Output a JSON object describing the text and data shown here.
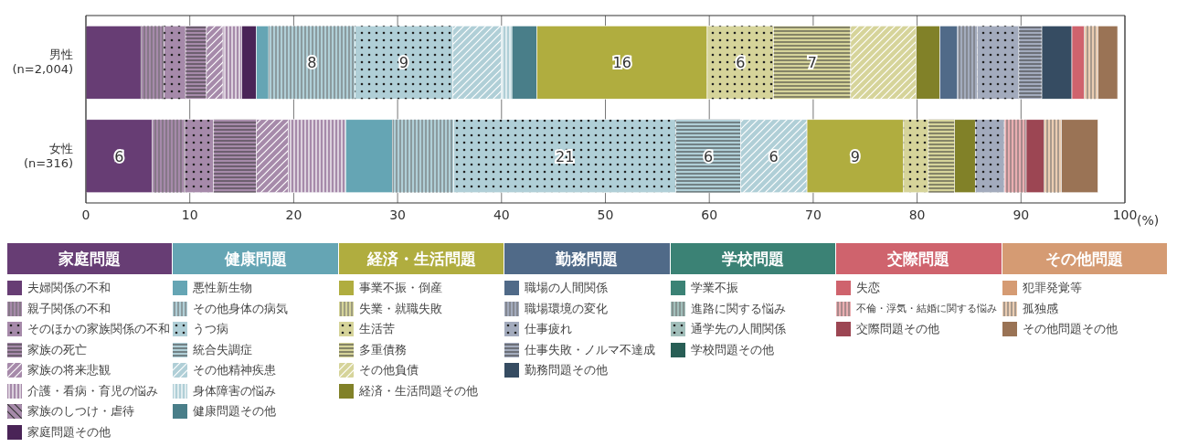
{
  "chart_data": {
    "type": "bar",
    "orientation": "horizontal",
    "stacked": true,
    "categories": [
      "男性\n(n=2,004)",
      "女性\n(n=316)"
    ],
    "xlim": [
      0,
      100
    ],
    "xticks": [
      0,
      10,
      20,
      30,
      40,
      50,
      60,
      70,
      80,
      90,
      100
    ],
    "xlabel": "(%)",
    "grid": "x",
    "legend": "bottom",
    "annotations": [
      "家庭問題",
      "健康問題",
      "経済・生活問題",
      "勤務問題",
      "学校問題",
      "交際問題",
      "その他問題"
    ],
    "series": [
      {
        "name": "夫婦関係の不和",
        "color": "#673d74",
        "values": [
          5.3,
          6.4
        ],
        "value_labels": [
          null,
          "6"
        ]
      },
      {
        "name": "親子関係の不和",
        "color": "#a68aaa",
        "values": [
          2.2,
          3.1
        ]
      },
      {
        "name": "そのほかの家族関係の不和",
        "color": "#a68aaa",
        "values": [
          2.1,
          2.8
        ]
      },
      {
        "name": "家族の死亡",
        "color": "#a68aaa",
        "values": [
          2.0,
          4.1
        ]
      },
      {
        "name": "家族の将来悲観",
        "color": "#a68aaa",
        "values": [
          1.6,
          3.1
        ]
      },
      {
        "name": "介護・看病・育児の悩み",
        "color": "#a68aaa",
        "values": [
          1.8,
          5.5
        ]
      },
      {
        "name": "家族のしつけ・虐待",
        "color": "#a68aaa",
        "values": [
          0,
          0
        ]
      },
      {
        "name": "家庭問題その他",
        "color": "#4a2457",
        "values": [
          1.4,
          0
        ]
      },
      {
        "name": "悪性新生物",
        "color": "#65a5b4",
        "values": [
          1.2,
          4.5
        ]
      },
      {
        "name": "その他身体の病気",
        "color": "#b0cfd7",
        "values": [
          8.3,
          5.9
        ],
        "value_labels": [
          "8",
          null
        ]
      },
      {
        "name": "うつ病",
        "color": "#b0cfd7",
        "values": [
          9.4,
          21.4
        ],
        "value_labels": [
          "9",
          "21"
        ]
      },
      {
        "name": "統合失調症",
        "color": "#b0cfd7",
        "values": [
          0,
          6.2
        ],
        "value_labels": [
          null,
          "6"
        ]
      },
      {
        "name": "その他精神疾患",
        "color": "#b0cfd7",
        "values": [
          4.7,
          6.4
        ],
        "value_labels": [
          null,
          "6"
        ]
      },
      {
        "name": "身体障害の悩み",
        "color": "#b0cfd7",
        "values": [
          1.0,
          0
        ]
      },
      {
        "name": "健康問題その他",
        "color": "#497e89",
        "values": [
          2.4,
          0
        ]
      },
      {
        "name": "事業不振・倒産",
        "color": "#b0ad3f",
        "values": [
          16.4,
          9.3
        ],
        "value_labels": [
          "16",
          "9"
        ]
      },
      {
        "name": "失業・就職失敗",
        "color": "#d6d49a",
        "values": [
          0,
          0
        ]
      },
      {
        "name": "生活苦",
        "color": "#d6d49a",
        "values": [
          6.4,
          2.4
        ],
        "value_labels": [
          "6",
          null
        ]
      },
      {
        "name": "多重債務",
        "color": "#d6d49a",
        "values": [
          7.4,
          2.5
        ],
        "value_labels": [
          "7",
          null
        ]
      },
      {
        "name": "その他負債",
        "color": "#d6d49a",
        "values": [
          6.3,
          0
        ]
      },
      {
        "name": "経済・生活問題その他",
        "color": "#818128",
        "values": [
          2.3,
          2.0
        ]
      },
      {
        "name": "職場の人間関係",
        "color": "#506a88",
        "values": [
          1.7,
          0
        ]
      },
      {
        "name": "職場環境の変化",
        "color": "#a3abbd",
        "values": [
          1.9,
          0
        ]
      },
      {
        "name": "仕事疲れ",
        "color": "#a3abbd",
        "values": [
          4.0,
          2.8
        ]
      },
      {
        "name": "仕事失敗・ノルマ不達成",
        "color": "#a3abbd",
        "values": [
          2.2,
          0
        ]
      },
      {
        "name": "勤務問題その他",
        "color": "#364c62",
        "values": [
          2.9,
          0
        ]
      },
      {
        "name": "学業不振",
        "color": "#3b8275",
        "values": [
          0,
          0
        ]
      },
      {
        "name": "進路に関する悩み",
        "color": "#a2bfbb",
        "values": [
          0,
          0
        ]
      },
      {
        "name": "通学先の人間関係",
        "color": "#a2bfbb",
        "values": [
          0,
          0
        ]
      },
      {
        "name": "学校問題その他",
        "color": "#285e55",
        "values": [
          0,
          0
        ]
      },
      {
        "name": "失恋",
        "color": "#cf636d",
        "values": [
          1.2,
          0
        ]
      },
      {
        "name": "不倫・浮気・結婚に関する悩み",
        "color": "#e9aeb1",
        "values": [
          0,
          2.1
        ]
      },
      {
        "name": "交際問題その他",
        "color": "#9c4653",
        "values": [
          0,
          1.7
        ]
      },
      {
        "name": "犯罪発覚等",
        "color": "#d59b73",
        "values": [
          0,
          0
        ]
      },
      {
        "name": "孤独感",
        "color": "#ebcdb2",
        "values": [
          1.3,
          1.7
        ]
      },
      {
        "name": "その他問題その他",
        "color": "#9a7355",
        "values": [
          1.9,
          3.5
        ]
      }
    ]
  }
}
